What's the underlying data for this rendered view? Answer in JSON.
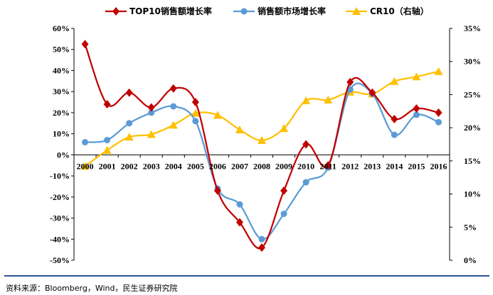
{
  "chart_data": {
    "type": "line",
    "categories": [
      "2000",
      "2001",
      "2002",
      "2003",
      "2004",
      "2005",
      "2006",
      "2007",
      "2008",
      "2009",
      "2010",
      "2011",
      "2012",
      "2013",
      "2014",
      "2015",
      "2016"
    ],
    "series": [
      {
        "name": "TOP10销售额增长率",
        "axis": "left",
        "color": "#c00000",
        "marker": "diamond",
        "values": [
          52.5,
          24,
          29.5,
          22.5,
          31.5,
          25,
          -17,
          -32,
          -44,
          -17,
          5,
          -5,
          34.5,
          29.5,
          17,
          22,
          20
        ]
      },
      {
        "name": "销售额市场增长率",
        "axis": "left",
        "color": "#5b9bd5",
        "marker": "circle",
        "values": [
          6,
          7,
          15,
          20,
          23,
          16,
          -16,
          -23.5,
          -40,
          -28,
          -13,
          -6,
          31,
          29,
          9.5,
          19,
          15.5
        ]
      },
      {
        "name": "CR10（右轴）",
        "axis": "right",
        "color": "#ffc000",
        "marker": "triangle",
        "values": [
          14.2,
          16.6,
          18.6,
          19,
          20.4,
          22.2,
          21.9,
          19.7,
          18.1,
          19.9,
          24.1,
          24.2,
          25.4,
          25.1,
          27,
          27.7,
          28.5
        ]
      }
    ],
    "y_left": {
      "min": -50,
      "max": 60,
      "ticks": [
        -50,
        -40,
        -30,
        -20,
        -10,
        0,
        10,
        20,
        30,
        40,
        50,
        60
      ],
      "format": "percent"
    },
    "y_right": {
      "min": 0,
      "max": 35,
      "ticks": [
        0,
        5,
        10,
        15,
        20,
        25,
        30,
        35
      ],
      "format": "percent"
    },
    "legend_position": "top",
    "grid": false
  },
  "source": "资料来源：Bloomberg，Wind，民生证券研究院"
}
